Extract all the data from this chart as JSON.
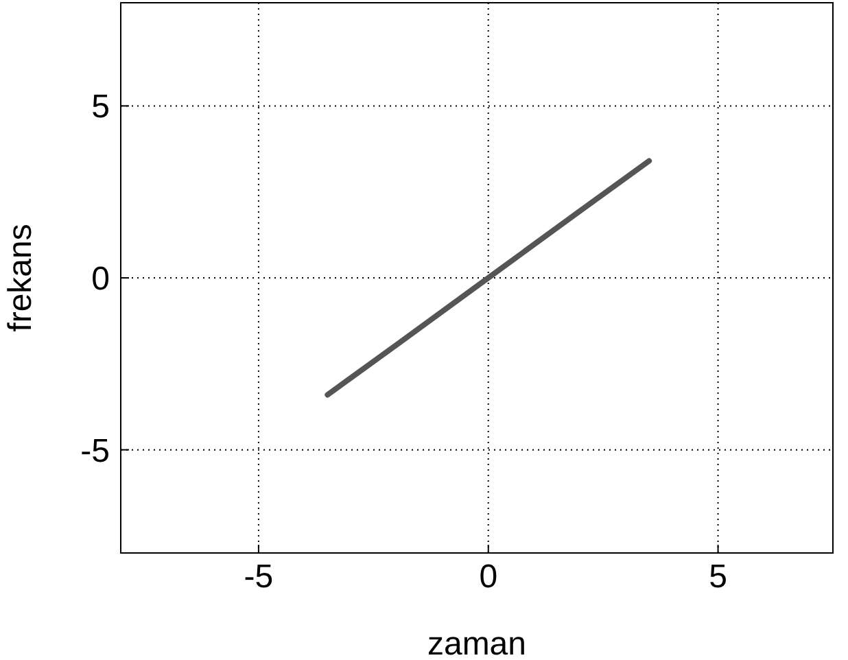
{
  "chart_data": {
    "type": "line",
    "xlabel": "zaman",
    "ylabel": "frekans",
    "x": [
      -3.5,
      -2,
      0,
      2,
      3.5
    ],
    "series": [
      {
        "color": "#555555",
        "values": [
          -3.4,
          -1.95,
          0,
          1.95,
          3.4
        ]
      }
    ],
    "xlim": [
      -8,
      7.5
    ],
    "ylim": [
      -8,
      8
    ],
    "xticks": [
      -5,
      0,
      5
    ],
    "yticks": [
      -5,
      0,
      5
    ],
    "grid": true,
    "line_style": "solid",
    "marker": "none"
  }
}
